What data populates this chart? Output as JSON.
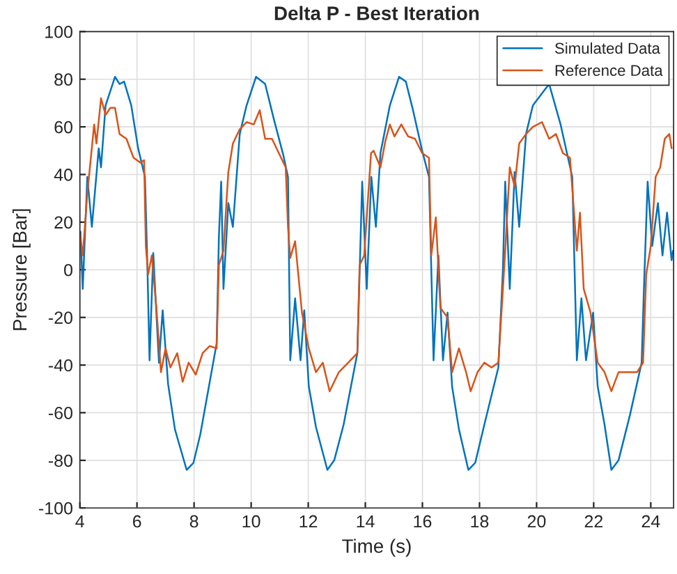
{
  "chart_data": {
    "type": "line",
    "title": "Delta P - Best Iteration",
    "xlabel": "Time (s)",
    "ylabel": "Pressure [Bar]",
    "xlim": [
      4,
      24.8
    ],
    "xticks": [
      4,
      6,
      8,
      10,
      12,
      14,
      16,
      18,
      20,
      22,
      24
    ],
    "ylim": [
      -100,
      100
    ],
    "yticks": [
      -100,
      -80,
      -60,
      -40,
      -20,
      0,
      20,
      40,
      60,
      80,
      100
    ],
    "grid": true,
    "legend": "top right",
    "line_style": "solid",
    "marker": "none",
    "series": [
      {
        "name": "Simulated Data",
        "color": "#0072bd",
        "x": [
          4.02,
          4.1,
          4.26,
          4.42,
          4.66,
          4.74,
          4.9,
          5.23,
          5.39,
          5.55,
          5.8,
          6.04,
          6.28,
          6.36,
          6.44,
          6.57,
          6.77,
          6.9,
          7.09,
          7.33,
          7.74,
          7.98,
          8.22,
          8.55,
          8.79,
          8.87,
          8.95,
          9.03,
          9.2,
          9.36,
          9.6,
          9.84,
          10.17,
          10.49,
          10.8,
          11.13,
          11.29,
          11.37,
          11.54,
          11.73,
          11.86,
          12.02,
          12.27,
          12.67,
          12.91,
          13.24,
          13.72,
          13.89,
          14.05,
          14.21,
          14.37,
          14.53,
          14.86,
          15.18,
          15.42,
          15.67,
          15.99,
          16.23,
          16.39,
          16.56,
          16.72,
          16.88,
          17.04,
          17.28,
          17.61,
          17.85,
          18.17,
          18.66,
          18.82,
          18.9,
          19.06,
          19.23,
          19.39,
          19.63,
          19.87,
          20.12,
          20.44,
          20.84,
          21.25,
          21.41,
          21.57,
          21.73,
          21.98,
          22.14,
          22.38,
          22.62,
          22.87,
          23.27,
          23.68,
          23.76,
          23.89,
          24.05,
          24.25,
          24.41,
          24.57,
          24.73,
          24.78
        ],
        "values": [
          16,
          -8,
          39,
          18,
          51,
          43,
          69,
          81,
          78,
          79,
          69,
          51,
          39,
          4,
          -38,
          7,
          -39,
          -17,
          -48,
          -67,
          -84,
          -81,
          -69,
          -47,
          -31,
          14,
          37,
          -8,
          28,
          18,
          57,
          69,
          81,
          78,
          63,
          48,
          39,
          -38,
          -12,
          -38,
          -17,
          -49,
          -66,
          -84,
          -80,
          -65,
          -35,
          37,
          -8,
          39,
          18,
          49,
          69,
          81,
          79,
          67,
          50,
          39,
          -38,
          6,
          -38,
          -18,
          -49,
          -67,
          -84,
          -81,
          -65,
          -41,
          0,
          37,
          -8,
          41,
          18,
          57,
          69,
          null,
          78,
          61,
          39,
          -38,
          -12,
          -38,
          -18,
          -49,
          -65,
          -84,
          -80,
          -61,
          -39,
          -8,
          37,
          10,
          28,
          6,
          24,
          4,
          8
        ]
      },
      {
        "name": "Reference Data",
        "color": "#d95319",
        "x": [
          4.0,
          4.1,
          4.26,
          4.5,
          4.58,
          4.74,
          4.9,
          5.07,
          5.23,
          5.39,
          5.63,
          5.88,
          6.12,
          6.25,
          6.31,
          6.39,
          6.52,
          6.68,
          6.84,
          7.0,
          7.17,
          7.41,
          7.6,
          7.81,
          8.06,
          8.3,
          8.55,
          8.79,
          8.87,
          9.03,
          9.2,
          9.36,
          9.6,
          9.84,
          10.09,
          10.3,
          10.49,
          10.73,
          10.97,
          11.21,
          11.29,
          11.37,
          11.54,
          11.78,
          12.02,
          12.27,
          12.51,
          12.75,
          13.07,
          13.4,
          13.72,
          13.8,
          13.96,
          14.2,
          14.29,
          14.53,
          14.7,
          14.86,
          15.02,
          15.26,
          15.5,
          15.74,
          15.99,
          16.23,
          16.31,
          16.47,
          16.63,
          16.88,
          17.04,
          17.28,
          17.53,
          17.69,
          17.93,
          18.17,
          18.42,
          18.66,
          18.82,
          18.9,
          19.06,
          19.23,
          19.39,
          19.63,
          19.87,
          20.19,
          20.44,
          20.68,
          20.92,
          21.17,
          21.3,
          21.41,
          21.52,
          21.65,
          21.89,
          22.14,
          22.38,
          22.62,
          22.87,
          23.19,
          23.52,
          23.73,
          23.84,
          24.0,
          24.17,
          24.33,
          24.49,
          24.65,
          24.73
        ],
        "values": [
          15,
          6,
          32,
          61,
          53,
          72,
          65,
          68,
          68,
          57,
          55,
          47,
          45,
          46,
          10,
          -2,
          6,
          -16,
          -43,
          -33,
          -41,
          -35,
          -47,
          -39,
          -44,
          -35,
          -32,
          -33,
          2,
          8,
          41,
          53,
          59,
          62,
          61,
          67,
          55,
          55,
          49,
          43,
          18,
          5,
          12,
          -18,
          -33,
          -43,
          -39,
          -51,
          -43,
          -39,
          -35,
          2,
          6,
          49,
          50,
          43,
          54,
          61,
          56,
          61,
          56,
          55,
          49,
          47,
          6,
          22,
          -16,
          -20,
          -43,
          -33,
          -43,
          -51,
          -43,
          -39,
          -41,
          -39,
          -8,
          8,
          43,
          35,
          53,
          57,
          60,
          62,
          55,
          57,
          49,
          47,
          26,
          8,
          24,
          -8,
          -18,
          -39,
          -43,
          -51,
          -43,
          -43,
          -43,
          -39,
          -2,
          10,
          39,
          43,
          55,
          57,
          51
        ]
      }
    ]
  }
}
